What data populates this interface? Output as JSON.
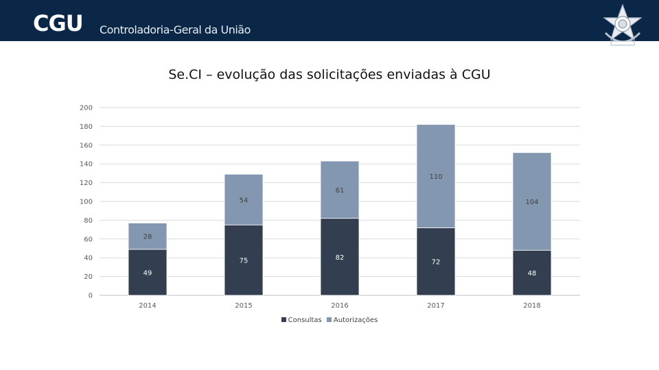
{
  "header": {
    "logo_text": "CGU",
    "subtitle": "Controladoria-Geral da União",
    "emblem_icon": "brazil-coat-of-arms-icon"
  },
  "chart_data": {
    "type": "bar",
    "stacked": true,
    "title": "Se.CI – evolução das solicitações enviadas à CGU",
    "categories": [
      "2014",
      "2015",
      "2016",
      "2017",
      "2018"
    ],
    "series": [
      {
        "name": "Consultas",
        "values": [
          49,
          75,
          82,
          72,
          48
        ],
        "color": "#333f50"
      },
      {
        "name": "Autorizações",
        "values": [
          28,
          54,
          61,
          110,
          104
        ],
        "color": "#8497b0"
      }
    ],
    "ylim": [
      0,
      200
    ],
    "yticks": [
      0,
      20,
      40,
      60,
      80,
      100,
      120,
      140,
      160,
      180,
      200
    ],
    "grid": true,
    "legend": "bottom",
    "xlabel": "",
    "ylabel": ""
  },
  "colors": {
    "header_bg": "#0b2747",
    "consultas": "#333f50",
    "autorizacoes": "#8497b0"
  }
}
